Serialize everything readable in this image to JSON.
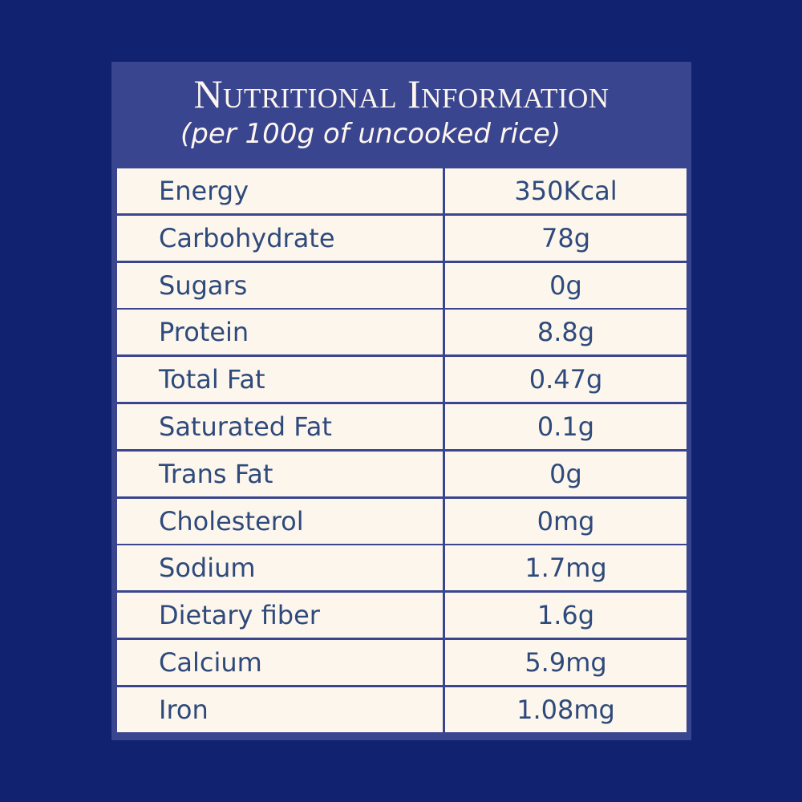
{
  "title": "Nutritional Information",
  "subtitle": "(per 100g of uncooked rice)",
  "colors": {
    "background": "#112270",
    "panel": "#3a4590",
    "cell": "#fdf6ec",
    "text": "#2e4a7c"
  },
  "rows": [
    {
      "name": "Energy",
      "value": "350Kcal"
    },
    {
      "name": "Carbohydrate",
      "value": "78g"
    },
    {
      "name": "Sugars",
      "value": "0g"
    },
    {
      "name": "Protein",
      "value": "8.8g"
    },
    {
      "name": "Total Fat",
      "value": "0.47g"
    },
    {
      "name": "Saturated Fat",
      "value": "0.1g"
    },
    {
      "name": "Trans Fat",
      "value": "0g"
    },
    {
      "name": "Cholesterol",
      "value": "0mg"
    },
    {
      "name": "Sodium",
      "value": "1.7mg"
    },
    {
      "name": "Dietary fiber",
      "value": "1.6g"
    },
    {
      "name": "Calcium",
      "value": "5.9mg"
    },
    {
      "name": "Iron",
      "value": "1.08mg"
    }
  ]
}
